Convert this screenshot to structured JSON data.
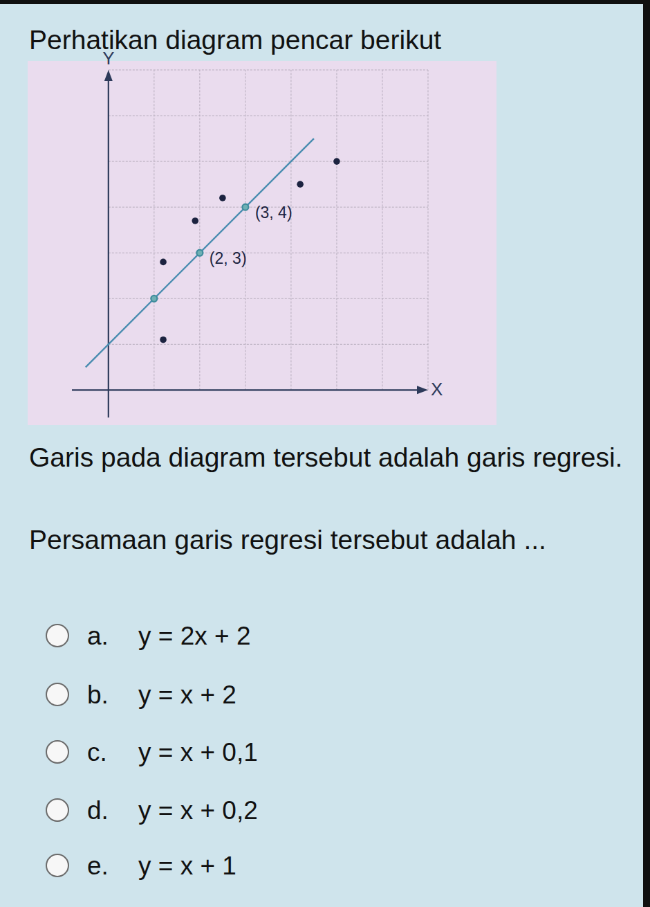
{
  "header": {
    "title": "Perhatikan diagram pencar berikut"
  },
  "chart_data": {
    "type": "scatter",
    "x_label": "X",
    "y_label": "Y",
    "xlim": [
      -0.8,
      7
    ],
    "ylim": [
      -0.6,
      7
    ],
    "xticks": [
      0,
      1,
      2,
      3,
      4,
      5,
      6,
      7
    ],
    "yticks": [
      0,
      1,
      2,
      3,
      4,
      5,
      6,
      7
    ],
    "grid": true,
    "tick_labels": false,
    "series": [
      {
        "type": "scatter",
        "color": "#1c2340",
        "marker": "dot",
        "x": [
          1.2,
          1.2,
          1.9,
          2.5,
          4.2,
          5.0
        ],
        "values": [
          1.1,
          2.8,
          3.7,
          4.2,
          4.5,
          5.0
        ]
      },
      {
        "type": "scatter",
        "color": "#3d8c9c",
        "marker": "ring",
        "x": [
          1,
          2,
          3
        ],
        "values": [
          2,
          3,
          4
        ]
      },
      {
        "type": "line",
        "color": "#4a8db0",
        "line_style": "solid",
        "x": [
          -0.5,
          4.5
        ],
        "values": [
          0.5,
          5.5
        ]
      }
    ],
    "annotations": [
      {
        "text": "(3, 4)",
        "x": 3,
        "y": 4
      },
      {
        "text": "(2, 3)",
        "x": 2,
        "y": 3
      }
    ]
  },
  "question": [
    "Garis pada diagram tersebut adalah garis regresi.",
    "Persamaan garis regresi tersebut adalah ..."
  ],
  "options": [
    {
      "label": "a.",
      "text": "y = 2x + 2"
    },
    {
      "label": "b.",
      "text": "y = x + 2"
    },
    {
      "label": "c.",
      "text": "y = x + 0,1"
    },
    {
      "label": "d.",
      "text": "y = x + 0,2"
    },
    {
      "label": "e.",
      "text": "y = x + 1"
    }
  ]
}
